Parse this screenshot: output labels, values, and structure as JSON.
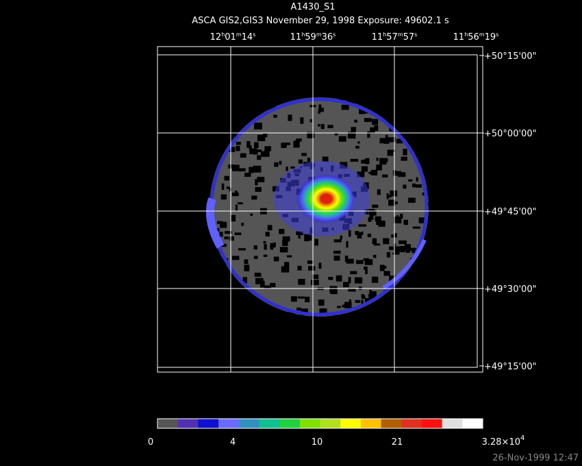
{
  "header": {
    "title": "A1430_S1",
    "subtitle": "ASCA GIS2,GIS3 November 29, 1998 Exposure: 49602.1 s"
  },
  "ra_labels": [
    [
      "12",
      "h",
      "01",
      "m",
      "14",
      "s"
    ],
    [
      "11",
      "h",
      "59",
      "m",
      "36",
      "s"
    ],
    [
      "11",
      "h",
      "57",
      "m",
      "57",
      "s"
    ],
    [
      "11",
      "h",
      "56",
      "m",
      "19",
      "s"
    ]
  ],
  "dec_labels": [
    "+50°15'00\"",
    "+50°00'00\"",
    "+49°45'00\"",
    "+49°30'00\"",
    "+49°15'00\""
  ],
  "colorbar_labels": [
    [
      "0"
    ],
    [
      "4"
    ],
    [
      "10"
    ],
    [
      "21"
    ],
    [
      "3.28×10",
      "4"
    ]
  ],
  "timestamp": "26-Nov-1999 12:47"
}
